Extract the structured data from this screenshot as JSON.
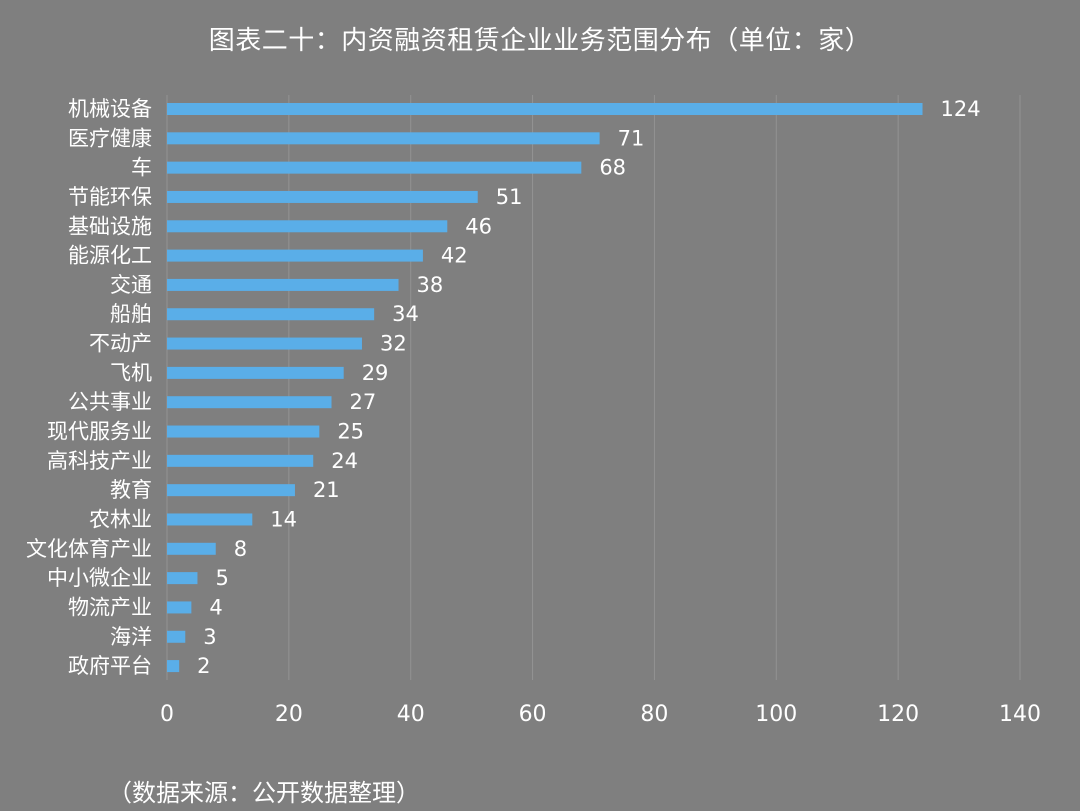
{
  "page": {
    "background": "#7f7f7f",
    "source_note": "（数据来源：公开数据整理）"
  },
  "chart_data": {
    "type": "bar",
    "orientation": "horizontal",
    "title": "图表二十：内资融资租赁企业业务范围分布（单位：家）",
    "xlabel": "",
    "ylabel": "",
    "xlim": [
      0,
      140
    ],
    "xticks": [
      0,
      20,
      40,
      60,
      80,
      100,
      120,
      140
    ],
    "grid": true,
    "legend": "none",
    "bar_color": "#5aaee8",
    "categories": [
      "机械设备",
      "医疗健康",
      "车",
      "节能环保",
      "基础设施",
      "能源化工",
      "交通",
      "船舶",
      "不动产",
      "飞机",
      "公共事业",
      "现代服务业",
      "高科技产业",
      "教育",
      "农林业",
      "文化体育产业",
      "中小微企业",
      "物流产业",
      "海洋",
      "政府平台"
    ],
    "values": [
      124,
      71,
      68,
      51,
      46,
      42,
      38,
      34,
      32,
      29,
      27,
      25,
      24,
      21,
      14,
      8,
      5,
      4,
      3,
      2
    ]
  }
}
